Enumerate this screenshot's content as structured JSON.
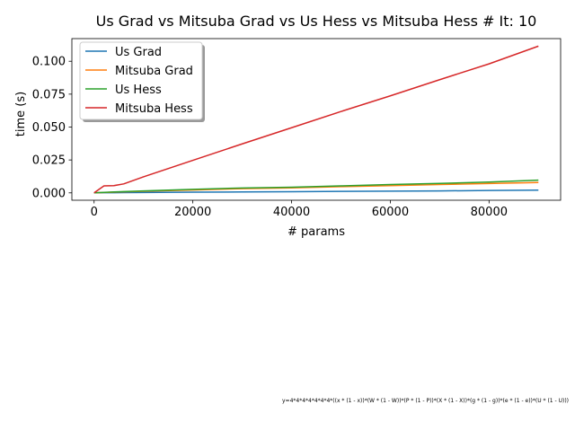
{
  "chart_data": {
    "type": "line",
    "title": "Us Grad vs Mitsuba Grad vs Us Hess vs Mitsuba Hess # It: 10",
    "xlabel": "# params",
    "ylabel": "time (s)",
    "xlim": [
      -4500,
      94500
    ],
    "ylim": [
      -0.0056,
      0.1172
    ],
    "xticks": [
      0,
      20000,
      40000,
      60000,
      80000
    ],
    "xtick_labels": [
      "0",
      "20000",
      "40000",
      "60000",
      "80000"
    ],
    "yticks": [
      0.0,
      0.025,
      0.05,
      0.075,
      0.1
    ],
    "ytick_labels": [
      "0.000",
      "0.025",
      "0.050",
      "0.075",
      "0.100"
    ],
    "legend_position": "upper-left",
    "grid": false,
    "series": [
      {
        "name": "Us Grad",
        "color": "#1f77b4",
        "x": [
          0,
          2000,
          4000,
          6000,
          10000,
          20000,
          30000,
          40000,
          50000,
          60000,
          70000,
          80000,
          90000
        ],
        "y": [
          0.0,
          0.0001,
          0.0001,
          0.0002,
          0.0003,
          0.0005,
          0.0007,
          0.0009,
          0.0011,
          0.0013,
          0.0015,
          0.0018,
          0.0021
        ]
      },
      {
        "name": "Mitsuba Grad",
        "color": "#ff7f0e",
        "x": [
          0,
          2000,
          4000,
          6000,
          10000,
          20000,
          30000,
          40000,
          50000,
          60000,
          70000,
          80000,
          90000
        ],
        "y": [
          0.0,
          0.0003,
          0.0005,
          0.0008,
          0.0012,
          0.0022,
          0.0032,
          0.0038,
          0.0047,
          0.0055,
          0.0063,
          0.0071,
          0.0079
        ]
      },
      {
        "name": "Us Hess",
        "color": "#2ca02c",
        "x": [
          0,
          2000,
          4000,
          6000,
          10000,
          20000,
          30000,
          40000,
          50000,
          60000,
          70000,
          80000,
          90000
        ],
        "y": [
          0.0,
          0.0004,
          0.0007,
          0.001,
          0.0015,
          0.0027,
          0.0037,
          0.0043,
          0.0053,
          0.0063,
          0.0072,
          0.0082,
          0.0097
        ]
      },
      {
        "name": "Mitsuba Hess",
        "color": "#d62728",
        "x": [
          0,
          2000,
          4000,
          6000,
          10000,
          20000,
          30000,
          40000,
          50000,
          60000,
          70000,
          80000,
          90000
        ],
        "y": [
          0.0,
          0.0053,
          0.0055,
          0.0068,
          0.0122,
          0.0247,
          0.0372,
          0.0495,
          0.0618,
          0.0737,
          0.086,
          0.098,
          0.1115
        ]
      }
    ],
    "footnote": "y=4*4*4*4*4*4*4*((x * (1 - x))*(W * (1 - W))*(P * (1 - P))*(X * (1 - X))*(g * (1 - g))*(e * (1 - e))*(U * (1 - U)))"
  }
}
